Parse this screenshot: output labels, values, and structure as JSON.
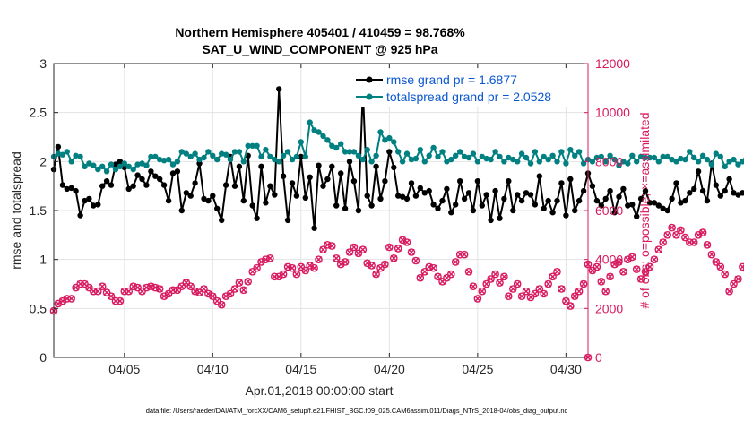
{
  "chart_data": {
    "type": "line",
    "title_line1": "Northern Hemisphere 405401 / 410459 = 98.768%",
    "title_line2": "SAT_U_WIND_COMPONENT @ 925 hPa",
    "xlabel": "Apr.01,2018 00:00:00 start",
    "ylabel_left": "rmse and totalspread",
    "ylabel_right": "# of obs: o=possible; ×=assimilated",
    "xlim": [
      1.0,
      31.25
    ],
    "ylim_left": [
      0,
      3
    ],
    "ylim_right": [
      0,
      12000
    ],
    "x_ticks": [
      {
        "value": 5,
        "label": "04/05"
      },
      {
        "value": 10,
        "label": "04/10"
      },
      {
        "value": 15,
        "label": "04/15"
      },
      {
        "value": 20,
        "label": "04/20"
      },
      {
        "value": 25,
        "label": "04/25"
      },
      {
        "value": 30,
        "label": "04/30"
      }
    ],
    "y_ticks_left": [
      "0",
      "0.5",
      "1",
      "1.5",
      "2",
      "2.5",
      "3"
    ],
    "y_ticks_right": [
      "0",
      "2000",
      "4000",
      "6000",
      "8000",
      "10000",
      "12000"
    ],
    "grid": true,
    "legend_position": "top-right",
    "colors": {
      "rmse": "#000000",
      "spread": "#008080",
      "obs": "#d81b60",
      "legend_text": "#0b57d0"
    },
    "series": [
      {
        "name": "rmse grand pr = 1.6877",
        "axis": "left",
        "color": "#000000",
        "x_start": 1.0,
        "x_step": 0.25,
        "values": [
          1.92,
          2.15,
          1.76,
          1.72,
          1.73,
          1.7,
          1.45,
          1.6,
          1.62,
          1.55,
          1.56,
          1.75,
          1.8,
          1.76,
          1.97,
          2.0,
          1.94,
          1.72,
          1.75,
          1.86,
          1.82,
          1.76,
          1.9,
          1.85,
          1.82,
          1.76,
          1.6,
          1.88,
          1.9,
          1.5,
          1.68,
          1.65,
          1.78,
          1.98,
          1.62,
          1.6,
          1.65,
          1.52,
          1.4,
          1.76,
          2.05,
          1.75,
          1.95,
          1.6,
          2.06,
          1.55,
          1.42,
          1.95,
          1.58,
          1.75,
          1.66,
          2.74,
          1.85,
          1.4,
          1.78,
          1.65,
          2.05,
          1.63,
          1.84,
          1.32,
          1.96,
          1.75,
          1.82,
          1.95,
          1.55,
          1.88,
          1.52,
          2.0,
          1.8,
          1.5,
          2.72,
          1.65,
          1.55,
          1.95,
          1.62,
          1.8,
          2.1,
          1.94,
          1.65,
          1.64,
          1.62,
          1.78,
          1.65,
          1.73,
          1.68,
          1.7,
          1.56,
          1.52,
          1.6,
          1.72,
          1.48,
          1.56,
          1.8,
          1.62,
          1.68,
          1.5,
          1.8,
          1.55,
          1.66,
          1.4,
          1.7,
          1.42,
          1.62,
          1.8,
          1.5,
          1.66,
          1.6,
          1.68,
          1.66,
          1.56,
          1.85,
          1.52,
          1.6,
          1.48,
          1.6,
          1.78,
          1.45,
          1.82,
          1.5,
          1.6,
          1.7,
          1.88,
          1.75,
          1.6,
          1.55,
          1.62,
          1.7,
          1.48,
          1.64,
          1.72,
          1.55,
          1.56,
          1.44,
          1.62,
          1.7,
          1.58,
          1.58,
          1.55,
          1.52,
          1.5,
          1.62,
          1.78,
          1.58,
          1.6,
          1.68,
          1.72,
          1.9,
          1.7,
          1.6,
          1.98,
          1.76,
          1.65,
          1.7,
          1.82,
          1.68,
          1.66,
          1.68,
          1.66,
          1.64,
          1.52,
          1.58
        ]
      },
      {
        "name": "totalspread grand pr = 2.0528",
        "axis": "left",
        "color": "#008080",
        "x_start": 1.0,
        "x_step": 0.25,
        "values": [
          2.05,
          2.08,
          2.07,
          2.1,
          2.0,
          2.06,
          2.05,
          1.95,
          1.98,
          1.96,
          1.92,
          1.95,
          1.9,
          1.97,
          1.92,
          1.95,
          1.98,
          1.95,
          1.92,
          1.97,
          1.98,
          1.96,
          2.05,
          2.05,
          2.02,
          2.01,
          2.02,
          1.97,
          2.0,
          2.1,
          2.08,
          2.05,
          2.08,
          2.02,
          2.04,
          2.1,
          2.06,
          2.02,
          2.08,
          2.07,
          2.02,
          2.1,
          2.1,
          2.0,
          2.16,
          2.16,
          2.16,
          2.05,
          2.12,
          2.05,
          2.02,
          2.0,
          2.06,
          2.1,
          2.02,
          2.05,
          2.2,
          2.05,
          2.4,
          2.32,
          2.3,
          2.26,
          2.22,
          2.16,
          2.14,
          2.18,
          2.1,
          2.1,
          2.1,
          2.06,
          2.02,
          2.12,
          2.0,
          2.06,
          2.3,
          2.22,
          2.24,
          2.2,
          2.1,
          2.0,
          2.08,
          2.02,
          2.03,
          2.12,
          2.0,
          2.06,
          2.14,
          2.05,
          2.1,
          2.0,
          2.02,
          2.06,
          2.1,
          2.05,
          2.04,
          2.08,
          2.0,
          2.05,
          2.03,
          2.02,
          2.1,
          2.05,
          2.0,
          2.04,
          2.02,
          2.0,
          2.08,
          2.04,
          1.98,
          2.1,
          2.0,
          2.05,
          2.02,
          2.06,
          2.0,
          2.1,
          1.98,
          2.12,
          2.06,
          2.1,
          1.98,
          2.02,
          2.0,
          2.04,
          2.05,
          2.0,
          2.06,
          2.02,
          1.96,
          2.0,
          1.98,
          2.06,
          2.0,
          2.05,
          2.04,
          2.04,
          2.04,
          2.0,
          2.05,
          2.05,
          2.02,
          2.0,
          2.03,
          2.02,
          2.1,
          2.04,
          2.0,
          2.06,
          2.02,
          1.97,
          2.08,
          2.05,
          1.95,
          2.0,
          2.02,
          1.97,
          2.0,
          2.08,
          2.03,
          2.02,
          2.14,
          2.18,
          2.04,
          2.02,
          2.04,
          2.02,
          2.05,
          2.04,
          2.0,
          2.02,
          2.05,
          2.0,
          2.02,
          2.02,
          2.0
        ]
      },
      {
        "name": "# of obs possible/assimilated",
        "axis": "right",
        "color": "#d81b60",
        "x_start": 1.0,
        "x_step": 0.25,
        "values": [
          1900,
          2200,
          2300,
          2400,
          2400,
          2850,
          3000,
          3000,
          2850,
          2700,
          2700,
          2900,
          2650,
          2500,
          2300,
          2300,
          2700,
          2700,
          2900,
          2850,
          2700,
          2850,
          2900,
          2850,
          2800,
          2500,
          2600,
          2750,
          2750,
          2900,
          3050,
          2900,
          2700,
          2650,
          2800,
          2600,
          2500,
          2300,
          2150,
          2500,
          2600,
          2800,
          3050,
          2750,
          3100,
          3500,
          3650,
          3900,
          4000,
          4050,
          3300,
          3300,
          3400,
          3700,
          3650,
          3400,
          3700,
          3550,
          3750,
          3650,
          4000,
          4400,
          4600,
          4550,
          4050,
          3800,
          3900,
          4300,
          4500,
          4250,
          4400,
          3850,
          3750,
          3400,
          3650,
          3800,
          4500,
          4050,
          4450,
          4800,
          4700,
          4300,
          3950,
          3250,
          3500,
          3700,
          3650,
          3300,
          3100,
          3250,
          3400,
          3900,
          4200,
          4200,
          3500,
          2900,
          2400,
          2700,
          3000,
          3200,
          3400,
          3050,
          3300,
          2500,
          2800,
          3000,
          2500,
          2700,
          2450,
          2600,
          2800,
          2600,
          3000,
          3300,
          3500,
          2800,
          2300,
          2100,
          2500,
          2700,
          3000,
          3800,
          3550,
          3700,
          3100,
          2700,
          3300,
          3800,
          3900,
          3500,
          4000,
          4100,
          3600,
          3200,
          3500,
          3700,
          4000,
          4400,
          4700,
          5000,
          5300,
          5000,
          5200,
          4900,
          4700,
          4700,
          5000,
          5100,
          4600,
          4200,
          3900,
          3700,
          3400,
          2700,
          3000,
          3200,
          3700,
          3600,
          3100,
          2900,
          2600,
          2800,
          3200,
          3800,
          3400,
          3100,
          2900,
          3300,
          3600,
          3700,
          3300,
          3200,
          2900,
          2600,
          2800,
          3100,
          3600,
          3500,
          4050,
          4000,
          3950,
          3700,
          3800,
          4000,
          3600,
          3200,
          3300,
          3100,
          3000,
          2700,
          3500,
          3100,
          3300,
          2600,
          2900,
          2700,
          2500,
          2450,
          3000
        ]
      },
      {
        "name": "zero marker",
        "axis": "right",
        "color": "#d81b60",
        "x_start": 31.25,
        "x_step": 0.25,
        "values": [
          0
        ]
      }
    ]
  },
  "footer_text": "data file: /Users/raeder/DAI/ATM_forcXX/CAM6_setup/f.e21.FHIST_BGC.f09_025.CAM6assim.011/Diags_NTrS_2018-04/obs_diag_output.nc"
}
